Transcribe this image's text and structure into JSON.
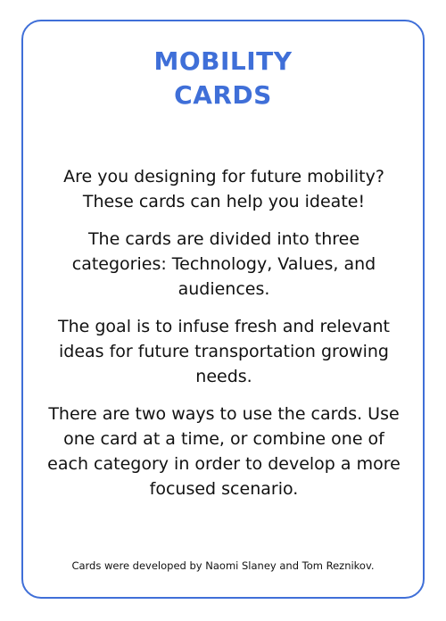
{
  "card": {
    "title_line1": "MOBILITY",
    "title_line2": "CARDS",
    "paragraphs": [
      "Are you designing for future mobility? These cards can help you ideate!",
      "The cards are divided into three categories: Technology, Values, and audiences.",
      "The goal is to infuse fresh and relevant ideas for future transportation growing needs.",
      "There are two ways to use the cards. Use one card at a time, or combine one of each category in order to develop a more focused scenario."
    ],
    "credit": "Cards were developed by Naomi Slaney and Tom Reznikov."
  },
  "colors": {
    "accent": "#3f6fd8",
    "text": "#111111",
    "background": "#ffffff"
  }
}
